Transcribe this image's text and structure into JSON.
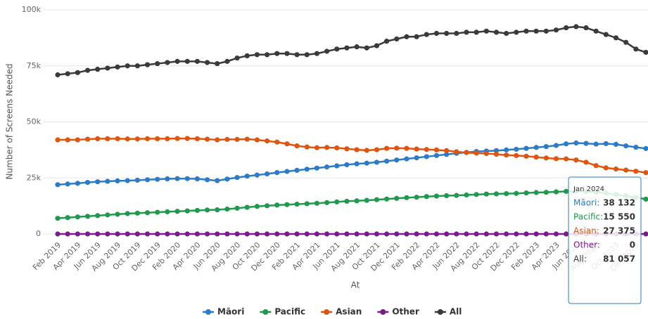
{
  "chart_data": {
    "type": "line",
    "y_axis_label": "Number of Screens Needed",
    "x_axis_label": "At",
    "categories": [
      "Feb 2019",
      null,
      "Apr 2019",
      null,
      "Jun 2019",
      null,
      "Aug 2019",
      null,
      "Oct 2019",
      null,
      "Dec 2019",
      null,
      "Feb 2020",
      null,
      "Apr 2020",
      null,
      "Jun 2020",
      null,
      "Aug 2020",
      null,
      "Oct 2020",
      null,
      "Dec 2020",
      null,
      "Feb 2021",
      null,
      "Apr 2021",
      null,
      "Jun 2021",
      null,
      "Aug 2021",
      null,
      "Oct 2021",
      null,
      "Dec 2021",
      null,
      "Feb 2022",
      null,
      "Apr 2022",
      null,
      "Jun 2022",
      null,
      "Aug 2022",
      null,
      "Oct 2022",
      null,
      "Dec 2022",
      null,
      "Feb 2023",
      null,
      "Apr 2023",
      null,
      "Jun 2023",
      null,
      "Aug 2023",
      null,
      "Oct 2023",
      null,
      "Dec 2023",
      null
    ],
    "ylim": [
      0,
      100000
    ],
    "yticks": [
      0,
      {
        "value": 25000,
        "label": "25k"
      },
      {
        "value": 50000,
        "label": "50k"
      },
      {
        "value": 75000,
        "label": "75k"
      },
      {
        "value": 100000,
        "label": "100k"
      }
    ],
    "grid": true,
    "legend": "bottom",
    "series": [
      {
        "name": "Māori",
        "color": "#2b7bc8",
        "values": [
          22000,
          22300,
          22600,
          23000,
          23300,
          23500,
          23700,
          23800,
          24000,
          24200,
          24400,
          24600,
          24700,
          24700,
          24600,
          24200,
          23800,
          24500,
          25200,
          25800,
          26300,
          26800,
          27400,
          27900,
          28400,
          28900,
          29400,
          29900,
          30400,
          30900,
          31300,
          31600,
          32000,
          32500,
          33000,
          33500,
          34000,
          34500,
          35000,
          35500,
          36000,
          36400,
          36800,
          37000,
          37200,
          37500,
          37800,
          38200,
          38600,
          39000,
          39500,
          40200,
          40600,
          40400,
          40100,
          40300,
          40000,
          39300,
          38700,
          38132
        ]
      },
      {
        "name": "Pacific",
        "color": "#1f9a4c",
        "values": [
          7000,
          7300,
          7600,
          7900,
          8200,
          8500,
          8800,
          9100,
          9300,
          9500,
          9700,
          9900,
          10100,
          10300,
          10500,
          10700,
          10800,
          11100,
          11500,
          11900,
          12300,
          12600,
          12900,
          13100,
          13300,
          13500,
          13700,
          14000,
          14300,
          14600,
          14800,
          15000,
          15300,
          15600,
          15900,
          16200,
          16400,
          16700,
          16900,
          17100,
          17200,
          17400,
          17600,
          17800,
          17900,
          18000,
          18100,
          18300,
          18500,
          18600,
          18800,
          19000,
          19100,
          18900,
          18600,
          18200,
          17600,
          17000,
          16300,
          15550
        ]
      },
      {
        "name": "Asian",
        "color": "#e0540f",
        "values": [
          42000,
          42000,
          42000,
          42300,
          42500,
          42500,
          42500,
          42400,
          42400,
          42500,
          42500,
          42500,
          42600,
          42600,
          42500,
          42300,
          42000,
          42200,
          42200,
          42300,
          42000,
          41500,
          41000,
          40200,
          39300,
          38800,
          38500,
          38600,
          38400,
          38000,
          37600,
          37300,
          37600,
          38200,
          38300,
          38200,
          37900,
          37700,
          37500,
          37200,
          36700,
          36300,
          36100,
          35900,
          35600,
          35200,
          35000,
          34700,
          34300,
          33900,
          33600,
          33500,
          33000,
          32000,
          30500,
          29500,
          29000,
          28500,
          28000,
          27375
        ]
      },
      {
        "name": "Other",
        "color": "#7a1a8c",
        "values": [
          0,
          0,
          0,
          0,
          0,
          0,
          0,
          0,
          0,
          0,
          0,
          0,
          0,
          0,
          0,
          0,
          0,
          0,
          0,
          0,
          0,
          0,
          0,
          0,
          0,
          0,
          0,
          0,
          0,
          0,
          0,
          0,
          0,
          0,
          0,
          0,
          0,
          0,
          0,
          0,
          0,
          0,
          0,
          0,
          0,
          0,
          0,
          0,
          0,
          0,
          0,
          0,
          0,
          0,
          0,
          0,
          0,
          0,
          0,
          0
        ]
      },
      {
        "name": "All",
        "color": "#3a3a3a",
        "values": [
          71000,
          71500,
          72000,
          73000,
          73500,
          74000,
          74500,
          75000,
          75000,
          75500,
          76000,
          76500,
          77000,
          77000,
          77000,
          76500,
          76000,
          77000,
          78500,
          79500,
          80000,
          80000,
          80500,
          80500,
          80000,
          80000,
          80500,
          81500,
          82500,
          83000,
          83500,
          83000,
          84000,
          86000,
          87000,
          88000,
          88000,
          89000,
          89500,
          89500,
          89500,
          90000,
          90000,
          90500,
          90000,
          89500,
          90000,
          90500,
          90500,
          90500,
          91000,
          92000,
          92500,
          92000,
          90500,
          89000,
          87500,
          85500,
          82500,
          81057
        ]
      }
    ],
    "tooltip": {
      "title": "Jan 2024",
      "labels": [
        "Māori:",
        "Pacific:",
        "Asian:",
        "Other:",
        "All:"
      ],
      "value_labels": [
        "38 132",
        "15 550",
        "27 375",
        "0",
        "81 057"
      ]
    }
  }
}
